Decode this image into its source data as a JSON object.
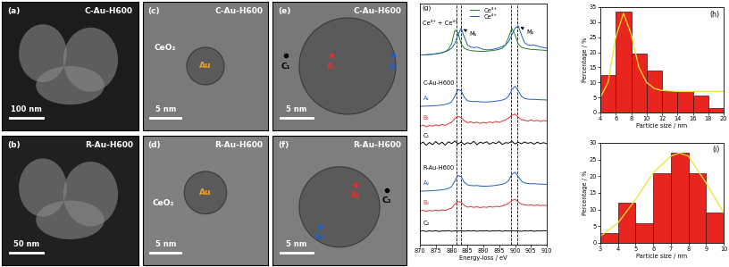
{
  "images": [
    {
      "panel": "(a)",
      "sample": "C-Au-H600",
      "scale_bar": "100 nm",
      "labels": []
    },
    {
      "panel": "(b)",
      "sample": "R-Au-H600",
      "scale_bar": "50 nm",
      "labels": []
    },
    {
      "panel": "(c)",
      "sample": "C-Au-H600",
      "scale_bar": "5 nm",
      "labels": [
        {
          "text": "Au",
          "color": "#f0a020"
        },
        {
          "text": "CeO₂",
          "color": "#ffffff"
        }
      ]
    },
    {
      "panel": "(d)",
      "sample": "R-Au-H600",
      "scale_bar": "5 nm",
      "labels": [
        {
          "text": "Au",
          "color": "#f0a020"
        },
        {
          "text": "CeO₂",
          "color": "#ffffff"
        }
      ]
    },
    {
      "panel": "(e)",
      "sample": "C-Au-H600",
      "scale_bar": "5 nm",
      "labels": [
        {
          "text": "C₁",
          "color": "#000000",
          "marker": "o"
        },
        {
          "text": "B₁",
          "color": "#e03030",
          "marker": "o"
        },
        {
          "text": "A₁",
          "color": "#2060c0",
          "marker": "o"
        }
      ]
    },
    {
      "panel": "(f)",
      "sample": "R-Au-H600",
      "scale_bar": "5 nm",
      "labels": [
        {
          "text": "B₂",
          "color": "#e03030",
          "marker": "o"
        },
        {
          "text": "A₂",
          "color": "#2060c0",
          "marker": "o"
        },
        {
          "text": "C₂",
          "color": "#000000",
          "marker": "o"
        }
      ]
    }
  ],
  "chart_data": [
    {
      "type": "line",
      "title": "(g)",
      "x_label": "Energy-loss / eV",
      "x": [
        870,
        871,
        872,
        873,
        874,
        875,
        876,
        877,
        878,
        879,
        880,
        881,
        882,
        883,
        884,
        885,
        886,
        887,
        888,
        889,
        890,
        891,
        892,
        893,
        894,
        895,
        896,
        897,
        898,
        899,
        900,
        901,
        902,
        903,
        904,
        905,
        906,
        907,
        908,
        909,
        910
      ],
      "xlim": [
        870,
        910
      ],
      "xticks": [
        870,
        875,
        880,
        885,
        890,
        895,
        900,
        905,
        910
      ],
      "ylim": [
        0,
        108
      ],
      "tick_labels": "x",
      "vlines": [
        881.5,
        883,
        898.8,
        900.8
      ],
      "annotations": [
        {
          "text": "M₅",
          "x": 883,
          "y": 97
        },
        {
          "text": "M₄",
          "x": 901,
          "y": 98
        }
      ],
      "groups": [
        {
          "label": "Ce³⁺ + Ce⁴⁺",
          "legend": "upper center",
          "series": [
            {
              "name": "Ce³⁺",
              "color": "#208020",
              "values": [
                85,
                85,
                85,
                85.2,
                85.3,
                85.5,
                85.7,
                86,
                86.5,
                87.5,
                90,
                96,
                95,
                90,
                88,
                87.3,
                87,
                86.8,
                86.7,
                86.6,
                86.6,
                86.7,
                86.8,
                87,
                87.2,
                87.5,
                88,
                89.5,
                93,
                97,
                94,
                90,
                88.5,
                88,
                87.7,
                87.5,
                87.4,
                87.3,
                87.2,
                87.1,
                87
              ]
            },
            {
              "name": "Ce⁴⁺",
              "color": "#2060c0",
              "values": [
                85,
                85,
                85.1,
                85.2,
                85.3,
                85.5,
                85.7,
                86,
                86.4,
                87,
                88,
                90,
                94,
                97,
                93,
                89.5,
                88.5,
                88.3,
                88.5,
                88,
                87.5,
                87.3,
                87.3,
                87.5,
                87.8,
                88.2,
                88.8,
                89.5,
                91,
                94,
                97,
                98,
                94,
                90.5,
                89.5,
                89.3,
                89.4,
                89,
                88.6,
                88.3,
                88
              ]
            }
          ]
        },
        {
          "label": "C-Au-H600",
          "series": [
            {
              "name": "A₁",
              "color": "#2060c0",
              "values": [
                62,
                62,
                62.1,
                62.1,
                62.2,
                62.3,
                62.4,
                62.6,
                62.8,
                63.2,
                64,
                66.5,
                69.5,
                69,
                66,
                64.5,
                64.2,
                64.1,
                64.2,
                64,
                63.9,
                63.9,
                64,
                64.1,
                64.3,
                64.5,
                64.8,
                65.3,
                66.5,
                69.5,
                71,
                69,
                66.5,
                65.5,
                65.2,
                65.1,
                65.1,
                65,
                64.9,
                64.9,
                64.8
              ]
            },
            {
              "name": "B₁",
              "color": "#e03030",
              "values": [
                53,
                53.6,
                52.8,
                53.4,
                53.1,
                53.7,
                53.2,
                53.9,
                53.4,
                54.2,
                54.8,
                56.5,
                57.5,
                57,
                55.5,
                54.6,
                55.1,
                54.5,
                54.9,
                54.3,
                54.8,
                54.4,
                55,
                54.6,
                55.2,
                54.8,
                55.4,
                55.9,
                56.8,
                58,
                58.5,
                57.2,
                56,
                55.8,
                55.3,
                55.9,
                55.4,
                55.7,
                55.2,
                55.6,
                55.3
              ]
            },
            {
              "name": "C₁",
              "color": "#000000",
              "values": [
                45,
                46,
                44.5,
                45.8,
                44.8,
                46.2,
                45,
                45.9,
                44.6,
                46.1,
                45.3,
                46.4,
                45.1,
                46,
                44.9,
                45.7,
                45.2,
                46.3,
                44.8,
                45.9,
                45.4,
                46.1,
                45,
                45.8,
                45.3,
                46.2,
                44.9,
                45.7,
                45.5,
                46.3,
                45.1,
                45.9,
                45.2,
                46,
                45.4,
                45.8,
                45,
                45.9,
                45.3,
                45.7,
                45.2
              ]
            }
          ]
        },
        {
          "label": "R-Au-H600",
          "series": [
            {
              "name": "A₂",
              "color": "#2060c0",
              "values": [
                24,
                24,
                24.1,
                24.1,
                24.2,
                24.3,
                24.4,
                24.6,
                24.8,
                25.2,
                26,
                28.5,
                31,
                30.5,
                28,
                26.8,
                26.5,
                26.4,
                26.5,
                26.3,
                26.2,
                26.2,
                26.3,
                26.4,
                26.6,
                26.8,
                27.1,
                27.6,
                28.8,
                31.5,
                32.5,
                30.5,
                28.5,
                27.7,
                27.4,
                27.3,
                27.3,
                27.2,
                27.1,
                27.1,
                27
              ]
            },
            {
              "name": "B₂",
              "color": "#e03030",
              "values": [
                15,
                15.4,
                14.9,
                15.3,
                15.1,
                15.5,
                15.2,
                15.6,
                15.3,
                15.9,
                16.4,
                18,
                19.3,
                19,
                17.6,
                16.8,
                17.1,
                16.7,
                17,
                16.6,
                16.9,
                16.7,
                17.1,
                16.8,
                17.2,
                17,
                17.4,
                17.8,
                18.6,
                19.8,
                20.3,
                19.2,
                18.1,
                17.9,
                17.6,
                17.9,
                17.5,
                17.8,
                17.5,
                17.7,
                17.5
              ]
            },
            {
              "name": "C₂",
              "color": "#000000",
              "values": [
                6,
                6.3,
                5.9,
                6.2,
                6,
                6.3,
                5.9,
                6.2,
                6.1,
                6.3,
                6,
                6.2,
                6.1,
                6.3,
                6,
                6.2,
                6.1,
                6.3,
                6,
                6.2,
                6.1,
                6.3,
                6,
                6.2,
                6.1,
                6.3,
                6,
                6.2,
                6.1,
                6.3,
                6.1,
                6.2,
                6,
                6.2,
                6.1,
                6.3,
                6,
                6.2,
                6.1,
                6.3,
                6.1
              ]
            }
          ]
        }
      ]
    },
    {
      "type": "histogram",
      "title": "(h)",
      "x_label": "Particle size / nm",
      "y_label": "Percentage / %",
      "bins": [
        4,
        6,
        8,
        10,
        12,
        14,
        16,
        18,
        20
      ],
      "counts": [
        12.5,
        33.5,
        19.5,
        14,
        7,
        7,
        5.5,
        1.5
      ],
      "color": "#e8261f",
      "xlim": [
        4,
        20
      ],
      "xticks": [
        4,
        6,
        8,
        10,
        12,
        14,
        16,
        18,
        20
      ],
      "ylim": [
        0,
        35
      ],
      "yticks": [
        0,
        5,
        10,
        15,
        20,
        25,
        30,
        35
      ],
      "fit": {
        "type": "line",
        "color": "#e6e62e",
        "x": [
          4,
          5,
          6,
          7,
          8,
          9,
          10,
          11,
          12,
          14,
          16,
          18,
          20
        ],
        "values": [
          5,
          10,
          25,
          33,
          26,
          15,
          10,
          8,
          7.3,
          7,
          7,
          7,
          7
        ]
      }
    },
    {
      "type": "histogram",
      "title": "(i)",
      "x_label": "Particle size / nm",
      "y_label": "Percentage / %",
      "bins": [
        3,
        4,
        5,
        6,
        7,
        8,
        9,
        10
      ],
      "counts": [
        3,
        12,
        6,
        21,
        27,
        21,
        9
      ],
      "color": "#e8261f",
      "xlim": [
        3,
        10
      ],
      "xticks": [
        3,
        4,
        5,
        6,
        7,
        8,
        9,
        10
      ],
      "ylim": [
        0,
        30
      ],
      "yticks": [
        0,
        5,
        10,
        15,
        20,
        25,
        30
      ],
      "fit": {
        "type": "line",
        "color": "#e6e62e",
        "x": [
          3,
          4,
          5,
          6,
          7,
          7.5,
          8,
          9,
          10
        ],
        "values": [
          2,
          6,
          13,
          21,
          26,
          27,
          26,
          18,
          9
        ]
      }
    }
  ]
}
